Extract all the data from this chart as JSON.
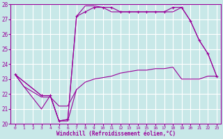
{
  "background_color": "#c8e8e8",
  "grid_color": "#ffffff",
  "line_color": "#990099",
  "xlabel": "Windchill (Refroidissement éolien,°C)",
  "xlim": [
    -0.5,
    23.5
  ],
  "ylim": [
    20,
    28
  ],
  "yticks": [
    20,
    21,
    22,
    23,
    24,
    25,
    26,
    27,
    28
  ],
  "xticks": [
    0,
    1,
    2,
    3,
    4,
    5,
    6,
    7,
    8,
    9,
    10,
    11,
    12,
    13,
    14,
    15,
    16,
    17,
    18,
    19,
    20,
    21,
    22,
    23
  ],
  "series": [
    {
      "x": [
        0,
        1,
        3,
        4,
        5,
        6,
        7,
        8,
        9,
        10,
        11,
        12,
        13,
        14,
        15,
        16,
        17,
        18,
        19,
        20,
        21,
        22,
        23
      ],
      "y": [
        23.3,
        22.5,
        21.8,
        21.8,
        21.2,
        21.2,
        22.3,
        22.8,
        23.0,
        23.1,
        23.2,
        23.4,
        23.5,
        23.6,
        23.6,
        23.7,
        23.7,
        23.8,
        23.0,
        23.0,
        23.0,
        23.2,
        23.2
      ]
    },
    {
      "x": [
        0,
        1,
        3,
        4,
        5,
        6,
        7
      ],
      "y": [
        23.3,
        22.5,
        21.0,
        21.9,
        20.2,
        20.2,
        22.3
      ]
    },
    {
      "x": [
        0,
        3,
        4,
        5,
        6,
        7,
        8,
        9,
        10,
        11,
        12,
        13,
        14,
        15,
        16,
        17,
        18,
        19,
        20,
        21,
        22,
        23
      ],
      "y": [
        23.3,
        21.9,
        21.9,
        20.2,
        20.3,
        27.2,
        27.5,
        27.8,
        27.8,
        27.8,
        27.5,
        27.5,
        27.5,
        27.5,
        27.5,
        27.5,
        27.8,
        27.8,
        26.9,
        25.6,
        24.7,
        23.2
      ],
      "marker": true
    },
    {
      "x": [
        0,
        3,
        4,
        5,
        6,
        7,
        8,
        9,
        10,
        11,
        12,
        13,
        14,
        15,
        16,
        17,
        18,
        19,
        20,
        21,
        22,
        23
      ],
      "y": [
        23.3,
        21.9,
        21.9,
        20.2,
        20.3,
        27.2,
        27.9,
        27.9,
        27.8,
        27.5,
        27.5,
        27.5,
        27.5,
        27.5,
        27.5,
        27.5,
        27.5,
        27.8,
        26.9,
        25.6,
        24.7,
        23.2
      ]
    }
  ]
}
